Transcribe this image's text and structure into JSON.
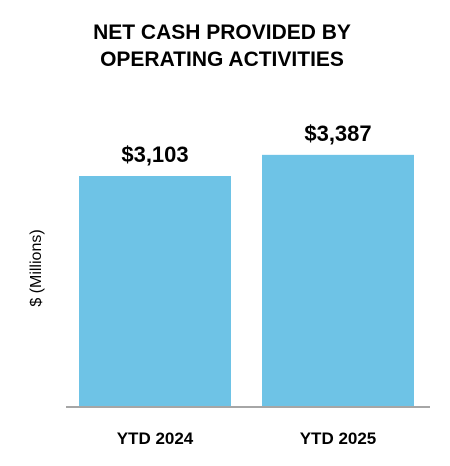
{
  "chart_data": {
    "type": "bar",
    "title_lines": [
      "NET CASH PROVIDED BY",
      "OPERATING ACTIVITIES"
    ],
    "ylabel": "$ (Millions)",
    "xlabel": "",
    "categories": [
      "YTD 2024",
      "YTD 2025"
    ],
    "values": [
      3103,
      3387
    ],
    "data_labels": [
      "$3,103",
      "$3,387"
    ],
    "bar_color": "#6EC3E6",
    "axis_color": "#A6A6A6",
    "grid": false
  }
}
